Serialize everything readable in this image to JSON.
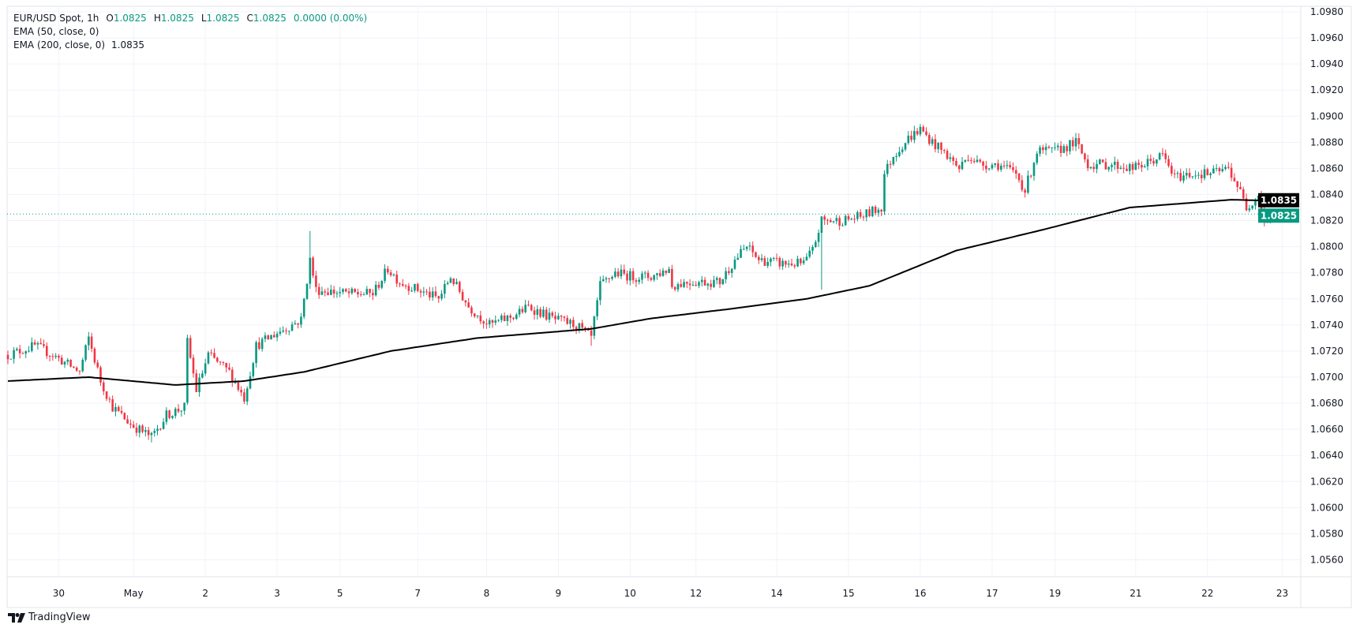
{
  "legend": {
    "symbol": "EUR/USD Spot, 1h",
    "o_label": "O",
    "o": "1.0825",
    "h_label": "H",
    "h": "1.0825",
    "l_label": "L",
    "l": "1.0825",
    "c_label": "C",
    "c": "1.0825",
    "change": "0.0000 (0.00%)",
    "ema50": "EMA (50, close, 0)",
    "ema200": "EMA (200, close, 0)",
    "ema200_value": "1.0835"
  },
  "branding": "TradingView",
  "colors": {
    "up": "#089981",
    "down": "#f23645",
    "ema": "#000000",
    "grid": "#f0f3fa",
    "last": "#089981"
  },
  "chart_data": {
    "type": "candlestick",
    "title": "EUR/USD Spot, 1h",
    "ylim": [
      1.0545,
      1.099
    ],
    "y_ticks": [
      "1.0980",
      "1.0960",
      "1.0940",
      "1.0920",
      "1.0900",
      "1.0880",
      "1.0860",
      "1.0840",
      "1.0820",
      "1.0800",
      "1.0780",
      "1.0760",
      "1.0740",
      "1.0720",
      "1.0700",
      "1.0680",
      "1.0660",
      "1.0640",
      "1.0620",
      "1.0600",
      "1.0580",
      "1.0560"
    ],
    "x_ticks": [
      {
        "label": "30",
        "bar": 17
      },
      {
        "label": "May",
        "bar": 42
      },
      {
        "label": "2",
        "bar": 66
      },
      {
        "label": "3",
        "bar": 90
      },
      {
        "label": "5",
        "bar": 111
      },
      {
        "label": "7",
        "bar": 137
      },
      {
        "label": "8",
        "bar": 160
      },
      {
        "label": "9",
        "bar": 184
      },
      {
        "label": "10",
        "bar": 208
      },
      {
        "label": "12",
        "bar": 230
      },
      {
        "label": "14",
        "bar": 257
      },
      {
        "label": "15",
        "bar": 281
      },
      {
        "label": "16",
        "bar": 305
      },
      {
        "label": "17",
        "bar": 329
      },
      {
        "label": "19",
        "bar": 350
      },
      {
        "label": "21",
        "bar": 377
      },
      {
        "label": "22",
        "bar": 401
      },
      {
        "label": "23",
        "bar": 426
      }
    ],
    "bars": 425,
    "close_path": [
      [
        0,
        1.0717
      ],
      [
        9,
        1.0724
      ],
      [
        15,
        1.0717
      ],
      [
        24,
        1.0704
      ],
      [
        27,
        1.073
      ],
      [
        31,
        1.0697
      ],
      [
        35,
        1.0677
      ],
      [
        41,
        1.0664
      ],
      [
        48,
        1.0654
      ],
      [
        53,
        1.0671
      ],
      [
        59,
        1.0677
      ],
      [
        60,
        1.0727
      ],
      [
        63,
        1.069
      ],
      [
        67,
        1.0717
      ],
      [
        74,
        1.0704
      ],
      [
        79,
        1.0684
      ],
      [
        83,
        1.0724
      ],
      [
        90,
        1.0734
      ],
      [
        98,
        1.0744
      ],
      [
        101,
        1.079
      ],
      [
        103,
        1.0767
      ],
      [
        114,
        1.0764
      ],
      [
        122,
        1.0764
      ],
      [
        127,
        1.0783
      ],
      [
        131,
        1.0773
      ],
      [
        140,
        1.0764
      ],
      [
        144,
        1.076
      ],
      [
        148,
        1.0777
      ],
      [
        154,
        1.0754
      ],
      [
        161,
        1.074
      ],
      [
        169,
        1.0747
      ],
      [
        174,
        1.0754
      ],
      [
        183,
        1.0744
      ],
      [
        190,
        1.074
      ],
      [
        195,
        1.073
      ],
      [
        198,
        1.077
      ],
      [
        203,
        1.078
      ],
      [
        209,
        1.0777
      ],
      [
        215,
        1.0777
      ],
      [
        221,
        1.0783
      ],
      [
        222,
        1.077
      ],
      [
        227,
        1.0773
      ],
      [
        238,
        1.0773
      ],
      [
        243,
        1.079
      ],
      [
        247,
        1.08
      ],
      [
        251,
        1.079
      ],
      [
        259,
        1.0787
      ],
      [
        266,
        1.0787
      ],
      [
        269,
        1.0797
      ],
      [
        272,
        1.082
      ],
      [
        279,
        1.082
      ],
      [
        285,
        1.0823
      ],
      [
        292,
        1.083
      ],
      [
        293,
        1.0856
      ],
      [
        296,
        1.087
      ],
      [
        301,
        1.0883
      ],
      [
        305,
        1.089
      ],
      [
        309,
        1.088
      ],
      [
        314,
        1.087
      ],
      [
        318,
        1.086
      ],
      [
        321,
        1.087
      ],
      [
        325,
        1.0863
      ],
      [
        331,
        1.0863
      ],
      [
        337,
        1.0856
      ],
      [
        340,
        1.0843
      ],
      [
        344,
        1.0873
      ],
      [
        350,
        1.0873
      ],
      [
        357,
        1.088
      ],
      [
        361,
        1.0863
      ],
      [
        369,
        1.0863
      ],
      [
        376,
        1.086
      ],
      [
        380,
        1.0863
      ],
      [
        386,
        1.087
      ],
      [
        390,
        1.0853
      ],
      [
        396,
        1.0856
      ],
      [
        402,
        1.0856
      ],
      [
        408,
        1.086
      ],
      [
        411,
        1.0847
      ],
      [
        414,
        1.083
      ],
      [
        418,
        1.084
      ],
      [
        420,
        1.082
      ],
      [
        424,
        1.0825
      ]
    ],
    "wick_spikes": [
      [
        101,
        1.0812
      ],
      [
        60,
        1.0732
      ],
      [
        272,
        1.0767
      ],
      [
        195,
        1.0724
      ],
      [
        305,
        1.0894
      ],
      [
        48,
        1.065
      ]
    ],
    "ema200_path": [
      [
        0,
        1.0697
      ],
      [
        27,
        1.07
      ],
      [
        56,
        1.0694
      ],
      [
        79,
        1.0697
      ],
      [
        99,
        1.0704
      ],
      [
        128,
        1.072
      ],
      [
        157,
        1.073
      ],
      [
        195,
        1.0737
      ],
      [
        215,
        1.0745
      ],
      [
        244,
        1.0753
      ],
      [
        267,
        1.076
      ],
      [
        288,
        1.077
      ],
      [
        302,
        1.0783
      ],
      [
        317,
        1.0797
      ],
      [
        346,
        1.0813
      ],
      [
        375,
        1.083
      ],
      [
        409,
        1.0836
      ],
      [
        425,
        1.0835
      ]
    ],
    "last_price": 1.0825,
    "last_price_label": "1.0825",
    "ema200_label": "1.0835"
  }
}
